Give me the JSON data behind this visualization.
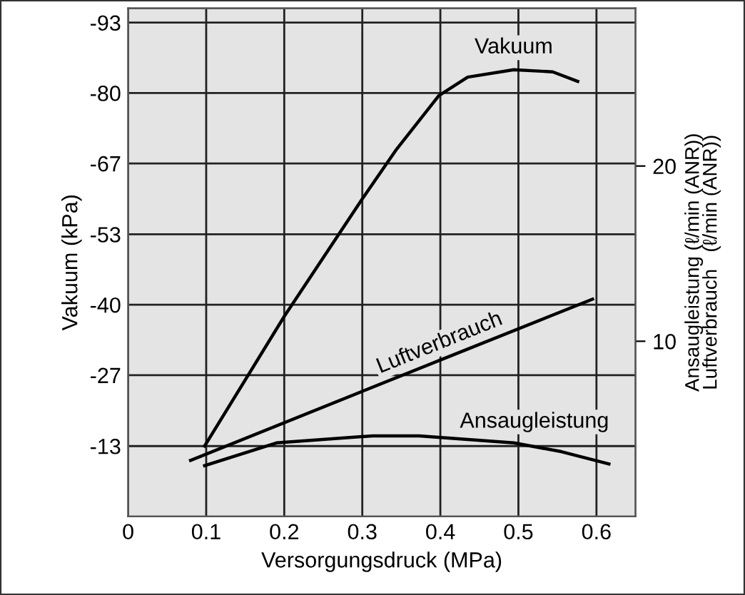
{
  "chart_data": {
    "type": "line",
    "xlabel": "Versorgungsdruck (MPa)",
    "ylabel": "Vakuum (kPa)",
    "y2label": "Ansaugleistung (ℓ/min (ANR))\nLuftverbrauch   (ℓ/min (ANR))",
    "series": [
      {
        "name": "Vakuum",
        "color": "#000000",
        "x": [
          0.098,
          0.2,
          0.3,
          0.344,
          0.398,
          0.435,
          0.494,
          0.544,
          0.576
        ],
        "values": [
          -13.3,
          -37.8,
          -60,
          -69.4,
          -79.5,
          -83,
          -84.4,
          -84,
          -82.2
        ]
      },
      {
        "name": "Luftverbrauch",
        "color": "#000000",
        "axis": "y2",
        "x": [
          0.08,
          0.404,
          0.595
        ],
        "values": [
          3.2,
          9.0,
          12.4
        ]
      },
      {
        "name": "Ansaugleistung",
        "color": "#000000",
        "axis": "y2",
        "x": [
          0.098,
          0.19,
          0.313,
          0.373,
          0.494,
          0.555,
          0.616
        ],
        "values": [
          2.9,
          4.2,
          4.6,
          4.6,
          4.2,
          3.7,
          3.0
        ]
      }
    ],
    "xlim": [
      0,
      0.65
    ],
    "xticks": [
      0,
      0.1,
      0.2,
      0.3,
      0.4,
      0.5,
      0.6
    ],
    "ylim": [
      0,
      -96
    ],
    "yticks": [
      {
        "value": -13.3,
        "label": "-13"
      },
      {
        "value": -26.7,
        "label": "-27"
      },
      {
        "value": -40,
        "label": "-40"
      },
      {
        "value": -53.3,
        "label": "-53"
      },
      {
        "value": -66.7,
        "label": "-67"
      },
      {
        "value": -80,
        "label": "-80"
      },
      {
        "value": -93.3,
        "label": "-93"
      }
    ],
    "y2lim": [
      0,
      29
    ],
    "y2ticks": [
      10,
      20
    ],
    "grid": true,
    "legend": false,
    "marker": "none",
    "line_style": "solid"
  }
}
